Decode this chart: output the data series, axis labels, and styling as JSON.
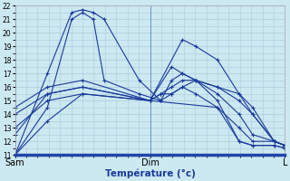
{
  "xlabel": "Température (°c)",
  "x_ticks_pos": [
    0,
    0.5,
    1.0
  ],
  "x_tick_labels": [
    "Sam",
    "Dim",
    "L"
  ],
  "ylim": [
    11,
    22
  ],
  "yticks": [
    11,
    12,
    13,
    14,
    15,
    16,
    17,
    18,
    19,
    20,
    21,
    22
  ],
  "bg_color": "#cce8f0",
  "grid_color": "#aaccdd",
  "line_color": "#1a3a9a",
  "series": [
    {
      "x": [
        0.0,
        0.12,
        0.21,
        0.25,
        0.29,
        0.33,
        0.46,
        0.54,
        0.58,
        0.62,
        0.67,
        0.75,
        0.83,
        0.88,
        0.96,
        1.0
      ],
      "y": [
        11.0,
        17.0,
        21.5,
        21.7,
        21.5,
        21.0,
        16.5,
        15.0,
        15.5,
        16.0,
        15.5,
        14.5,
        12.0,
        11.7,
        11.7,
        11.5
      ]
    },
    {
      "x": [
        0.0,
        0.12,
        0.21,
        0.25,
        0.29,
        0.33,
        0.46,
        0.54,
        0.58,
        0.62,
        0.67,
        0.75,
        0.83,
        0.88,
        0.96,
        1.0
      ],
      "y": [
        11.0,
        14.5,
        21.0,
        21.5,
        21.0,
        16.5,
        15.5,
        15.0,
        16.5,
        17.0,
        16.5,
        15.0,
        12.0,
        11.7,
        11.7,
        11.5
      ]
    },
    {
      "x": [
        0.0,
        0.12,
        0.25,
        0.5,
        0.62,
        0.67,
        0.75,
        0.83,
        0.88,
        0.96,
        1.0
      ],
      "y": [
        12.5,
        15.5,
        16.0,
        15.0,
        19.5,
        19.0,
        18.0,
        15.5,
        14.5,
        12.0,
        11.7
      ]
    },
    {
      "x": [
        0.0,
        0.12,
        0.25,
        0.5,
        0.58,
        0.62,
        0.67,
        0.75,
        0.83,
        0.88,
        0.96,
        1.0
      ],
      "y": [
        14.0,
        15.5,
        16.0,
        15.0,
        17.5,
        17.0,
        16.5,
        16.0,
        15.5,
        14.0,
        12.0,
        11.7
      ]
    },
    {
      "x": [
        0.0,
        0.12,
        0.25,
        0.5,
        0.54,
        0.58,
        0.62,
        0.67,
        0.75,
        0.83,
        0.88,
        0.96,
        1.0
      ],
      "y": [
        14.5,
        16.0,
        16.5,
        15.0,
        15.5,
        16.0,
        16.5,
        16.5,
        15.5,
        14.0,
        12.5,
        12.0,
        11.7
      ]
    },
    {
      "x": [
        0.0,
        0.12,
        0.25,
        0.5,
        0.54,
        0.58,
        0.62,
        0.67,
        0.75,
        0.83,
        0.88,
        0.96,
        1.0
      ],
      "y": [
        13.0,
        15.0,
        15.5,
        15.0,
        15.5,
        15.5,
        16.0,
        16.5,
        16.0,
        15.0,
        14.0,
        12.0,
        11.7
      ]
    },
    {
      "x": [
        0.0,
        0.12,
        0.25,
        0.5,
        0.75,
        0.83,
        0.88,
        0.96,
        1.0
      ],
      "y": [
        11.0,
        13.5,
        15.5,
        15.0,
        14.5,
        13.0,
        12.0,
        12.0,
        11.7
      ]
    }
  ]
}
